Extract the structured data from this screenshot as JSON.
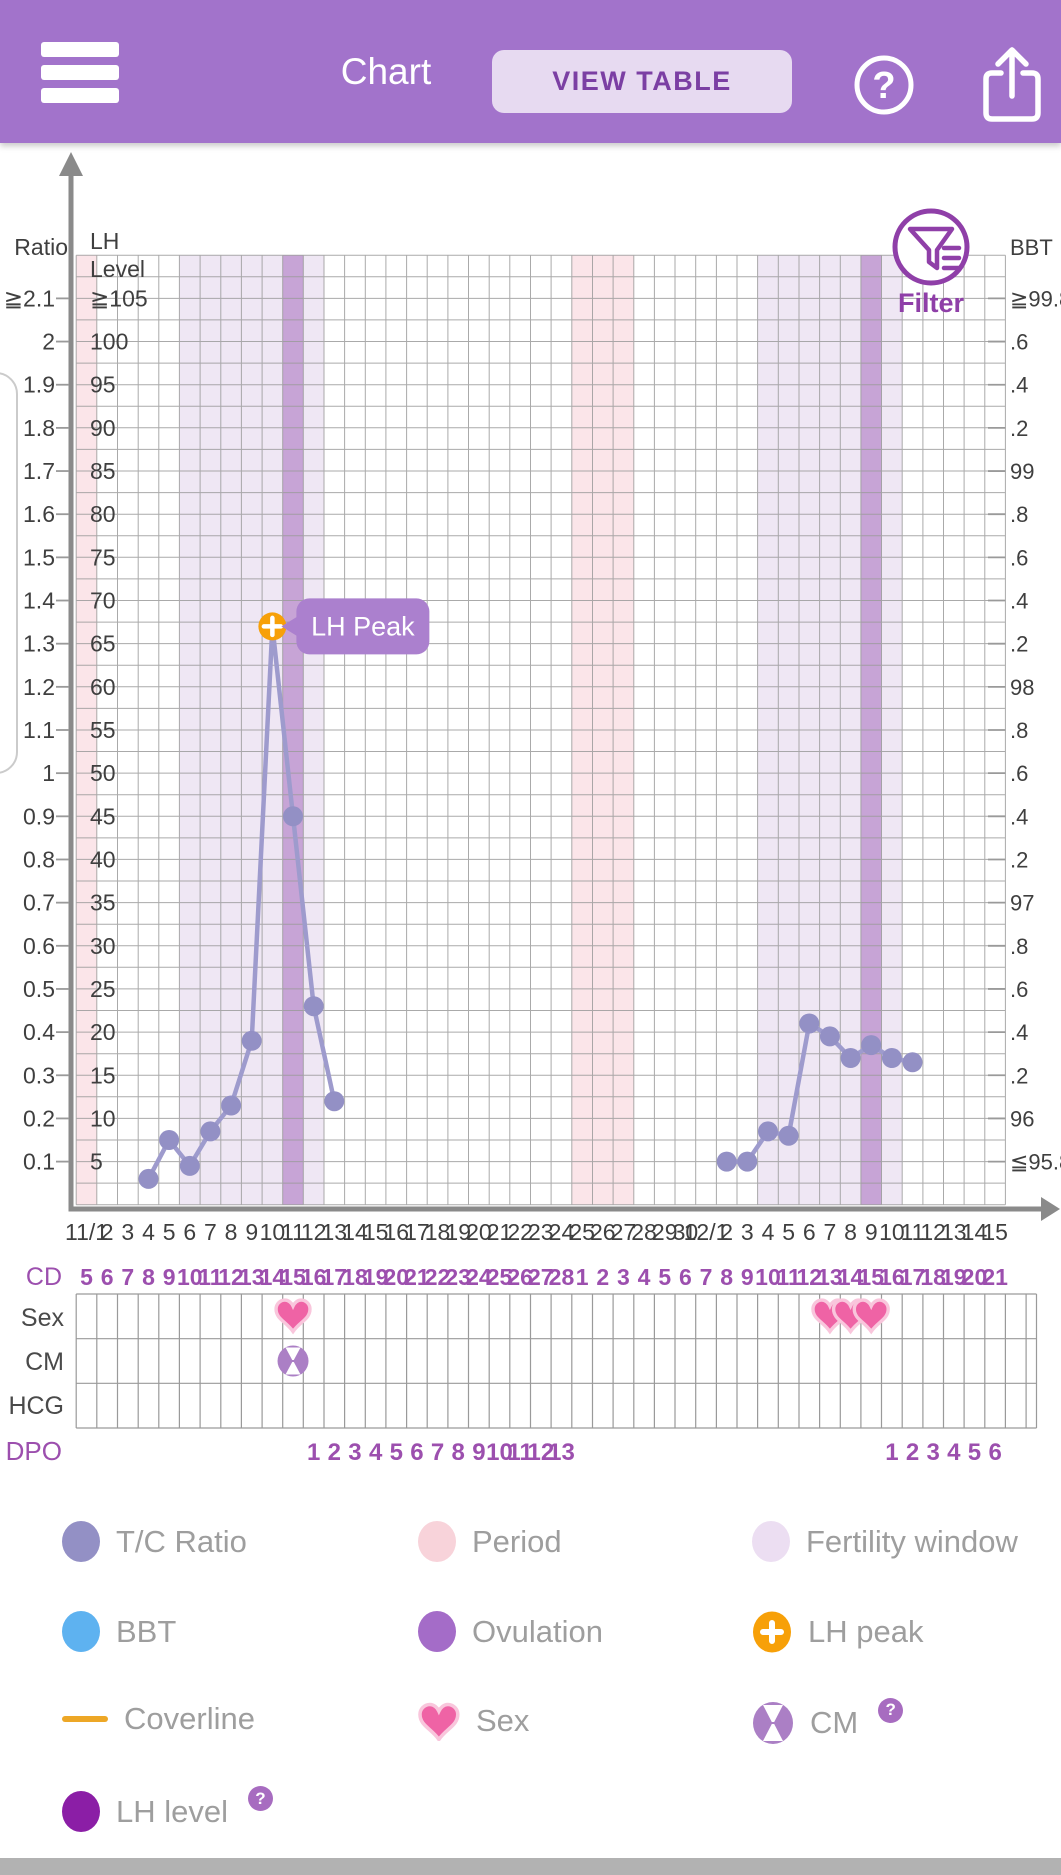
{
  "header": {
    "title": "Chart",
    "view_table": "VIEW TABLE"
  },
  "filter": {
    "label": "Filter"
  },
  "rows": {
    "cd": "CD",
    "sex": "Sex",
    "cm": "CM",
    "hcg": "HCG",
    "dpo": "DPO"
  },
  "axes": {
    "ratio": {
      "title": "Ratio",
      "ticks": [
        "≧2.1",
        "2",
        "1.9",
        "1.8",
        "1.7",
        "1.6",
        "1.5",
        "1.4",
        "1.3",
        "1.2",
        "1.1",
        "1",
        "0.9",
        "0.8",
        "0.7",
        "0.6",
        "0.5",
        "0.4",
        "0.3",
        "0.2",
        "0.1"
      ]
    },
    "lh": {
      "title_line1": "LH",
      "title_line2": "Level",
      "ticks": [
        "≧105",
        "100",
        "95",
        "90",
        "85",
        "80",
        "75",
        "70",
        "65",
        "60",
        "55",
        "50",
        "45",
        "40",
        "35",
        "30",
        "25",
        "20",
        "15",
        "10",
        "5"
      ]
    },
    "bbt": {
      "title": "BBT",
      "ticks": [
        "≧99.8",
        ".6",
        ".4",
        ".2",
        "99",
        ".8",
        ".6",
        ".4",
        ".2",
        "98",
        ".8",
        ".6",
        ".4",
        ".2",
        "97",
        ".8",
        ".6",
        ".4",
        ".2",
        "96",
        "≦95.8"
      ]
    }
  },
  "chart_data": {
    "type": "line",
    "x_dates": [
      "11/1",
      "2",
      "3",
      "4",
      "5",
      "6",
      "7",
      "8",
      "9",
      "10",
      "11",
      "12",
      "13",
      "14",
      "15",
      "16",
      "17",
      "18",
      "19",
      "20",
      "21",
      "22",
      "23",
      "24",
      "25",
      "26",
      "27",
      "28",
      "29",
      "30",
      "12/1",
      "2",
      "3",
      "4",
      "5",
      "6",
      "7",
      "8",
      "9",
      "10",
      "11",
      "12",
      "13",
      "14",
      "15"
    ],
    "cd_numbers": [
      5,
      6,
      7,
      8,
      9,
      10,
      11,
      12,
      13,
      14,
      15,
      16,
      17,
      18,
      19,
      20,
      21,
      22,
      23,
      24,
      25,
      26,
      27,
      28,
      1,
      2,
      3,
      4,
      5,
      6,
      7,
      8,
      9,
      10,
      11,
      12,
      13,
      14,
      15,
      16,
      17,
      18,
      19,
      20,
      21
    ],
    "ratio_axis_range": [
      "0.1",
      "≧2.1"
    ],
    "lh_axis_range": [
      "5",
      "≧105"
    ],
    "bbt_axis_range": [
      "≦95.8",
      "≧99.8"
    ],
    "series": [
      {
        "name": "T/C Ratio",
        "color": "#9390c5",
        "segments": [
          [
            {
              "date": "11/4",
              "ratio": 0.06
            },
            {
              "date": "11/5",
              "ratio": 0.15
            },
            {
              "date": "11/6",
              "ratio": 0.09
            },
            {
              "date": "11/7",
              "ratio": 0.17
            },
            {
              "date": "11/8",
              "ratio": 0.23
            },
            {
              "date": "11/9",
              "ratio": 0.38
            },
            {
              "date": "11/10",
              "ratio": 1.34
            },
            {
              "date": "11/11",
              "ratio": 0.9
            },
            {
              "date": "11/12",
              "ratio": 0.46
            },
            {
              "date": "11/13",
              "ratio": 0.24
            }
          ],
          [
            {
              "date": "12/2",
              "ratio": 0.1
            },
            {
              "date": "12/3",
              "ratio": 0.1
            },
            {
              "date": "12/4",
              "ratio": 0.17
            },
            {
              "date": "12/5",
              "ratio": 0.16
            },
            {
              "date": "12/6",
              "ratio": 0.42
            },
            {
              "date": "12/7",
              "ratio": 0.39
            },
            {
              "date": "12/8",
              "ratio": 0.34
            },
            {
              "date": "12/9",
              "ratio": 0.37
            },
            {
              "date": "12/10",
              "ratio": 0.34
            },
            {
              "date": "12/11",
              "ratio": 0.33
            }
          ]
        ]
      }
    ],
    "lh_peak": {
      "date": "11/10",
      "ratio": 1.34,
      "label": "LH Peak"
    },
    "bands": {
      "period": [
        {
          "from": "11/1",
          "to": "11/1"
        },
        {
          "from": "11/25",
          "to": "11/27"
        }
      ],
      "fertility_window": [
        {
          "from": "11/6",
          "to": "11/12"
        },
        {
          "from": "12/4",
          "to": "12/10"
        }
      ],
      "ovulation": [
        {
          "day": "11/11"
        },
        {
          "day": "12/9"
        }
      ]
    },
    "markers": {
      "sex": [
        "11/11",
        "12/7",
        "12/8",
        "12/9"
      ],
      "cm": [
        "11/11"
      ],
      "hcg": []
    },
    "dpo": [
      {
        "date": "11/12",
        "label": "1"
      },
      {
        "date": "11/13",
        "label": "2"
      },
      {
        "date": "11/14",
        "label": "3"
      },
      {
        "date": "11/15",
        "label": "4"
      },
      {
        "date": "11/16",
        "label": "5"
      },
      {
        "date": "11/17",
        "label": "6"
      },
      {
        "date": "11/18",
        "label": "7"
      },
      {
        "date": "11/19",
        "label": "8"
      },
      {
        "date": "11/20",
        "label": "9"
      },
      {
        "date": "11/21",
        "label": "10"
      },
      {
        "date": "11/22",
        "label": "11"
      },
      {
        "date": "11/23",
        "label": "12"
      },
      {
        "date": "11/24",
        "label": "13"
      },
      {
        "date": "12/10",
        "label": "1"
      },
      {
        "date": "12/11",
        "label": "2"
      },
      {
        "date": "12/12",
        "label": "3"
      },
      {
        "date": "12/13",
        "label": "4"
      },
      {
        "date": "12/14",
        "label": "5"
      },
      {
        "date": "12/15",
        "label": "6"
      }
    ]
  },
  "legend": [
    {
      "id": "tc-ratio",
      "icon": "dot",
      "color": "#9390c5",
      "label": "T/C Ratio",
      "help": false
    },
    {
      "id": "period",
      "icon": "dot",
      "color": "#f8d3da",
      "label": "Period",
      "help": false
    },
    {
      "id": "fertility-window",
      "icon": "dot",
      "color": "#ecdef2",
      "label": "Fertility window",
      "help": false
    },
    {
      "id": "bbt",
      "icon": "dot",
      "color": "#5eb2f0",
      "label": "BBT",
      "help": false
    },
    {
      "id": "ovulation",
      "icon": "dot",
      "color": "#a46cc8",
      "label": "Ovulation",
      "help": false
    },
    {
      "id": "lh-peak",
      "icon": "plus-circle",
      "color": "#f7a008",
      "label": "LH peak",
      "help": false
    },
    {
      "id": "coverline",
      "icon": "line",
      "color": "#eda726",
      "label": "Coverline",
      "help": false
    },
    {
      "id": "sex",
      "icon": "heart",
      "color": "#ef63a5",
      "label": "Sex",
      "help": false
    },
    {
      "id": "cm",
      "icon": "cm-circle",
      "color": "#ab7fc5",
      "label": "CM",
      "help": true
    },
    {
      "id": "lh-level",
      "icon": "dot",
      "color": "#8b1ea6",
      "label": "LH level",
      "help": true
    }
  ],
  "colors": {
    "header_bg": "#a273cb",
    "header_text": "#ffffff",
    "view_table_bg": "#e7daf1",
    "view_table_text": "#7b3fa3",
    "accent_purple": "#8f3fa8",
    "tooltip_bg": "#ab80ce",
    "lh_peak_orange": "#f7a008",
    "tc_line": "#9e9bcd",
    "tc_dot": "#9390c5",
    "period_band": "#fbe5e9",
    "fertility_band": "#efe7f4",
    "ovulation_band": "#c7a4d6",
    "sex_heart": "#ef63a5",
    "sex_heart_outline": "#f9c6dc",
    "cm_purple": "#ab7fc5",
    "cd_dpo_text": "#9c4fae",
    "axis_text": "#3f3f3f",
    "row_label_text": "#4a4a4a",
    "grid_line": "#9b9b9b",
    "axis_line": "#8a8a8a",
    "legend_text": "#9e9e9e",
    "bottom_bar": "#b2b2b2"
  }
}
